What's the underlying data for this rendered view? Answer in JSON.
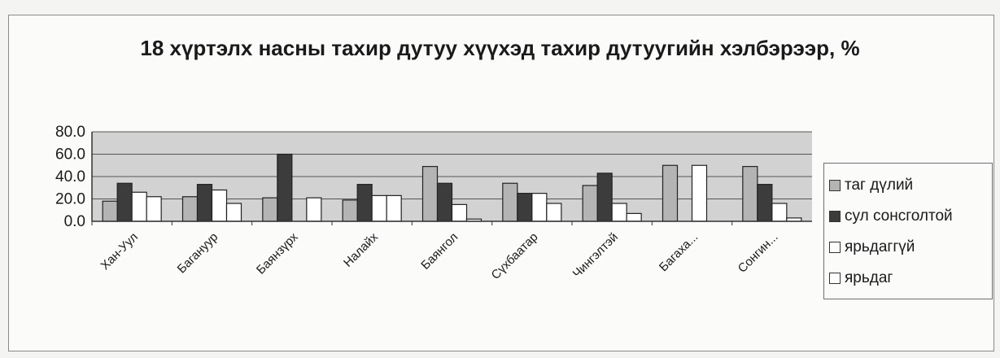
{
  "chart_data": {
    "type": "bar",
    "title": "18 хүртэлх насны тахир дутуу хүүхэд тахир дутуугийн хэлбэрээр, %",
    "categories": [
      "Хан-Уул",
      "Багануур",
      "Баянзүрх",
      "Налайх",
      "Баянгол",
      "Сүхбаатар",
      "Чингэлтэй",
      "Багаха...",
      "Сонгин..."
    ],
    "series": [
      {
        "name": "таг дүлий",
        "color": "#b4b4b4",
        "values": [
          18,
          22,
          21,
          19,
          49,
          34,
          32,
          50,
          49
        ]
      },
      {
        "name": "сул сонсголтой",
        "color": "#3c3c3c",
        "values": [
          34,
          33,
          60,
          33,
          34,
          25,
          43,
          0,
          33
        ]
      },
      {
        "name": "ярьдаггүй",
        "color": "#ffffff",
        "values": [
          26,
          28,
          0,
          23,
          15,
          25,
          16,
          50,
          16
        ]
      },
      {
        "name": "ярьдаг",
        "color": "#ffffff",
        "values": [
          22,
          16,
          21,
          23,
          2,
          16,
          7,
          0,
          3
        ]
      }
    ],
    "ylim": [
      0,
      80
    ],
    "yticks": [
      "80.0",
      "60.0",
      "40.0",
      "20.0",
      "0.0"
    ],
    "ytick_values": [
      80,
      60,
      40,
      20,
      0
    ],
    "grid": true,
    "legend_position": "right",
    "plot_background": "#d2d2d2"
  }
}
